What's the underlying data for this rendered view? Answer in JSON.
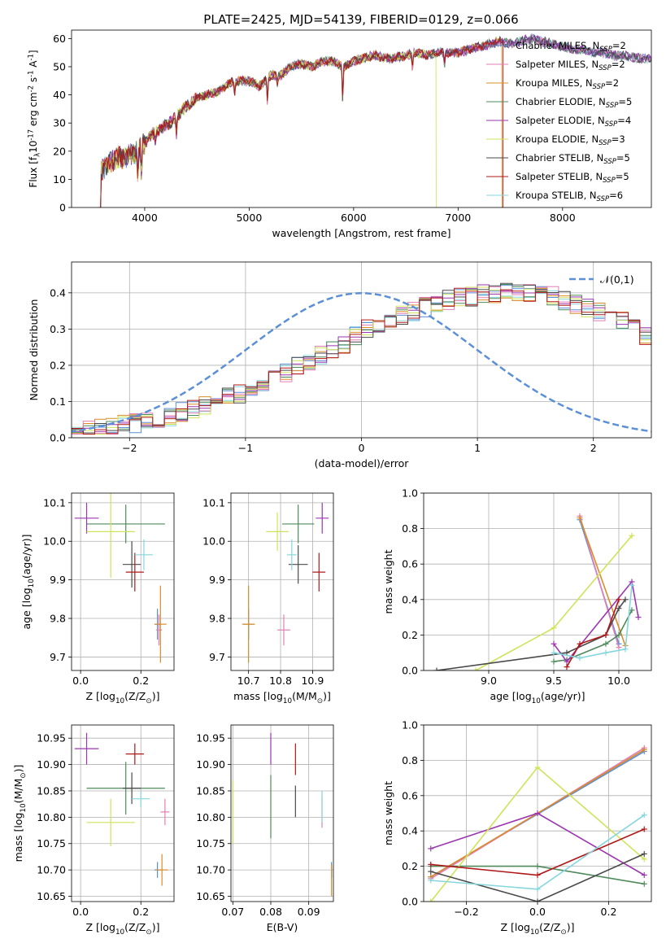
{
  "figure": {
    "title": "PLATE=2425, MJD=54139, FIBERID=0129, z=0.066"
  },
  "models": [
    {
      "name": "Chabrier MILES, N$_{SSP}$=2",
      "label_main": "Chabrier MILES, N",
      "label_sub": "SSP",
      "label_tail": "=2",
      "color": "#5a8ed6"
    },
    {
      "name": "Salpeter MILES, N$_{SSP}$=2",
      "label_main": "Salpeter MILES, N",
      "label_sub": "SSP",
      "label_tail": "=2",
      "color": "#e37fb6"
    },
    {
      "name": "Kroupa MILES, N$_{SSP}$=2",
      "label_main": "Kroupa MILES, N",
      "label_sub": "SSP",
      "label_tail": "=2",
      "color": "#d98c2a"
    },
    {
      "name": "Chabrier ELODIE, N$_{SSP}$=5",
      "label_main": "Chabrier ELODIE, N",
      "label_sub": "SSP",
      "label_tail": "=5",
      "color": "#4f8a5b"
    },
    {
      "name": "Salpeter ELODIE, N$_{SSP}$=4",
      "label_main": "Salpeter ELODIE, N",
      "label_sub": "SSP",
      "label_tail": "=4",
      "color": "#9b36b0"
    },
    {
      "name": "Kroupa ELODIE, N$_{SSP}$=3",
      "label_main": "Kroupa ELODIE, N",
      "label_sub": "SSP",
      "label_tail": "=3",
      "color": "#cfe35a"
    },
    {
      "name": "Chabrier STELIB, N$_{SSP}$=5",
      "label_main": "Chabrier STELIB, N",
      "label_sub": "SSP",
      "label_tail": "=5",
      "color": "#4a4a4a"
    },
    {
      "name": "Salpeter STELIB, N$_{SSP}$=5",
      "label_main": "Salpeter STELIB, N",
      "label_sub": "SSP",
      "label_tail": "=5",
      "color": "#b01818"
    },
    {
      "name": "Kroupa STELIB, N$_{SSP}$=6",
      "label_main": "Kroupa STELIB, N",
      "label_sub": "SSP",
      "label_tail": "=6",
      "color": "#86d6de"
    }
  ],
  "chart_data": [
    {
      "id": "spectrum",
      "type": "line",
      "title": "PLATE=2425, MJD=54139, FIBERID=0129, z=0.066",
      "xlabel": "wavelength [Angstrom, rest frame]",
      "ylabel": "Flux [f$_\\lambda$10$^{-17}$ erg cm$^{-2}$ s$^{-1}$ A$^{-1}$]",
      "xlim": [
        3300,
        8850
      ],
      "ylim": [
        0,
        63
      ],
      "xticks": [
        4000,
        5000,
        6000,
        7000,
        8000
      ],
      "yticks": [
        0,
        10,
        20,
        30,
        40,
        50,
        60
      ],
      "grid": false,
      "legend": "right",
      "envelope": {
        "x": [
          3580,
          3700,
          3800,
          3900,
          4000,
          4100,
          4200,
          4300,
          4400,
          4500,
          4600,
          4700,
          4800,
          4900,
          5000,
          5100,
          5200,
          5300,
          5400,
          5500,
          5600,
          5700,
          5800,
          5900,
          6000,
          6100,
          6200,
          6300,
          6400,
          6500,
          6600,
          6700,
          6800,
          6900,
          7000,
          7100,
          7200,
          7300,
          7400,
          7500,
          7600,
          7700,
          7800,
          7900,
          8000,
          8100,
          8200,
          8300,
          8400,
          8500,
          8600,
          8700,
          8800
        ],
        "y": [
          13,
          17,
          18,
          19,
          23,
          27,
          29,
          32,
          36,
          39,
          40,
          41,
          44,
          45,
          45,
          43,
          47,
          47,
          50,
          51,
          50,
          52,
          52,
          50,
          52,
          53,
          54,
          53,
          53,
          54,
          55,
          54,
          55,
          55,
          55,
          56,
          57,
          58,
          59,
          58,
          59,
          60,
          59,
          58,
          57,
          56,
          56,
          55,
          55,
          54,
          54,
          53,
          53
        ]
      },
      "dropouts": [
        {
          "series": "Kroupa ELODIE, N$_{SSP}$=3",
          "x": 6790
        },
        {
          "series": "Kroupa MILES, N$_{SSP}$=2",
          "x": 7420
        },
        {
          "series": "Salpeter STELIB, N$_{SSP}$=5",
          "x": 7430
        }
      ]
    },
    {
      "id": "residual_hist",
      "type": "area",
      "xlabel": "(data-model)/error",
      "ylabel": "Normed distribution",
      "xlim": [
        -2.5,
        2.5
      ],
      "ylim": [
        0,
        0.485
      ],
      "xticks": [
        -2,
        -1,
        0,
        1,
        2
      ],
      "yticks": [
        0.0,
        0.1,
        0.2,
        0.3,
        0.4
      ],
      "grid": true,
      "legend": "top-right",
      "reference": "$\\mathcal{N}(0,1)$",
      "bin_width": 0.1,
      "bins_start": -2.5,
      "shape": [
        0.02,
        0.02,
        0.025,
        0.03,
        0.035,
        0.04,
        0.045,
        0.05,
        0.06,
        0.07,
        0.08,
        0.09,
        0.1,
        0.11,
        0.12,
        0.14,
        0.15,
        0.16,
        0.18,
        0.2,
        0.21,
        0.23,
        0.24,
        0.26,
        0.28,
        0.3,
        0.31,
        0.32,
        0.34,
        0.35,
        0.36,
        0.37,
        0.38,
        0.39,
        0.39,
        0.4,
        0.4,
        0.41,
        0.4,
        0.4,
        0.39,
        0.39,
        0.38,
        0.37,
        0.36,
        0.35,
        0.33,
        0.32,
        0.3,
        0.28,
        0.27,
        0.25,
        0.23,
        0.21,
        0.19,
        0.17,
        0.15,
        0.13,
        0.12,
        0.1,
        0.09,
        0.08,
        0.07,
        0.06,
        0.05,
        0.04,
        0.035,
        0.03,
        0.025,
        0.02
      ]
    },
    {
      "id": "age_vs_Z",
      "type": "scatter",
      "xlabel": "Z [log$_{10}$(Z/Z$_\\odot$)]",
      "ylabel": "age  [log$_{10}$(age/yr)]",
      "xlim": [
        -0.03,
        0.31
      ],
      "ylim": [
        9.665,
        10.125
      ],
      "xticks": [
        0.0,
        0.2
      ],
      "yticks": [
        9.7,
        9.8,
        9.9,
        10.0,
        10.1
      ],
      "grid": true,
      "points": [
        {
          "series": "Chabrier MILES, N$_{SSP}$=2",
          "x": 0.255,
          "y": 9.785,
          "xerr": 0.01,
          "yerr": 0.04
        },
        {
          "series": "Salpeter MILES, N$_{SSP}$=2",
          "x": 0.26,
          "y": 9.77,
          "xerr": 0.01,
          "yerr": 0.04
        },
        {
          "series": "Kroupa MILES, N$_{SSP}$=2",
          "x": 0.265,
          "y": 9.785,
          "xerr": 0.02,
          "yerr": 0.1
        },
        {
          "series": "Chabrier ELODIE, N$_{SSP}$=5",
          "x": 0.15,
          "y": 10.045,
          "xerr": 0.13,
          "yerr": 0.05
        },
        {
          "series": "Salpeter ELODIE, N$_{SSP}$=4",
          "x": 0.02,
          "y": 10.06,
          "xerr": 0.04,
          "yerr": 0.04
        },
        {
          "series": "Kroupa ELODIE, N$_{SSP}$=3",
          "x": 0.1,
          "y": 10.025,
          "xerr": 0.08,
          "yerr": 0.12
        },
        {
          "series": "Chabrier STELIB, N$_{SSP}$=5",
          "x": 0.17,
          "y": 9.94,
          "xerr": 0.03,
          "yerr": 0.06
        },
        {
          "series": "Salpeter STELIB, N$_{SSP}$=5",
          "x": 0.18,
          "y": 9.92,
          "xerr": 0.03,
          "yerr": 0.05
        },
        {
          "series": "Kroupa STELIB, N$_{SSP}$=6",
          "x": 0.21,
          "y": 9.965,
          "xerr": 0.03,
          "yerr": 0.04
        }
      ]
    },
    {
      "id": "age_vs_mass",
      "type": "scatter",
      "xlabel": "mass [log$_{10}$(M/M$_\\odot$)]",
      "ylabel": "",
      "xlim": [
        10.645,
        10.965
      ],
      "ylim": [
        9.665,
        10.125
      ],
      "xticks": [
        10.7,
        10.8,
        10.9
      ],
      "yticks": [
        9.7,
        9.8,
        9.9,
        10.0,
        10.1
      ],
      "grid": true,
      "points": [
        {
          "series": "Chabrier MILES, N$_{SSP}$=2",
          "x": 10.7,
          "y": 9.785,
          "xerr": 0.015,
          "yerr": 0.04
        },
        {
          "series": "Salpeter MILES, N$_{SSP}$=2",
          "x": 10.81,
          "y": 9.77,
          "xerr": 0.02,
          "yerr": 0.04
        },
        {
          "series": "Kroupa MILES, N$_{SSP}$=2",
          "x": 10.7,
          "y": 9.785,
          "xerr": 0.02,
          "yerr": 0.1
        },
        {
          "series": "Chabrier ELODIE, N$_{SSP}$=5",
          "x": 10.855,
          "y": 10.045,
          "xerr": 0.05,
          "yerr": 0.05
        },
        {
          "series": "Salpeter ELODIE, N$_{SSP}$=4",
          "x": 10.93,
          "y": 10.06,
          "xerr": 0.02,
          "yerr": 0.04
        },
        {
          "series": "Kroupa ELODIE, N$_{SSP}$=3",
          "x": 10.79,
          "y": 10.025,
          "xerr": 0.035,
          "yerr": 0.05
        },
        {
          "series": "Chabrier STELIB, N$_{SSP}$=5",
          "x": 10.855,
          "y": 9.94,
          "xerr": 0.03,
          "yerr": 0.05
        },
        {
          "series": "Salpeter STELIB, N$_{SSP}$=5",
          "x": 10.92,
          "y": 9.92,
          "xerr": 0.02,
          "yerr": 0.05
        },
        {
          "series": "Kroupa STELIB, N$_{SSP}$=6",
          "x": 10.835,
          "y": 9.965,
          "xerr": 0.015,
          "yerr": 0.04
        }
      ]
    },
    {
      "id": "weight_vs_age",
      "type": "line",
      "xlabel": "age  [log$_{10}$(age/yr)]",
      "ylabel": "mass weight",
      "xlim": [
        8.5,
        10.25
      ],
      "ylim": [
        0,
        1
      ],
      "xticks": [
        9.0,
        9.5,
        10.0
      ],
      "yticks": [
        0.0,
        0.2,
        0.4,
        0.6,
        0.8,
        1.0
      ],
      "grid": true,
      "series": [
        {
          "name": "Chabrier MILES, N$_{SSP}$=2",
          "x": [
            9.7,
            10.0
          ],
          "y": [
            0.85,
            0.15
          ]
        },
        {
          "name": "Salpeter MILES, N$_{SSP}$=2",
          "x": [
            9.7,
            10.0
          ],
          "y": [
            0.87,
            0.13
          ]
        },
        {
          "name": "Kroupa MILES, N$_{SSP}$=2",
          "x": [
            9.7,
            10.05
          ],
          "y": [
            0.86,
            0.14
          ]
        },
        {
          "name": "Chabrier ELODIE, N$_{SSP}$=5",
          "x": [
            9.5,
            9.6,
            9.9,
            10.0,
            10.1
          ],
          "y": [
            0.05,
            0.06,
            0.15,
            0.2,
            0.34
          ]
        },
        {
          "name": "Salpeter ELODIE, N$_{SSP}$=4",
          "x": [
            9.5,
            9.6,
            10.1,
            10.15
          ],
          "y": [
            0.15,
            0.05,
            0.5,
            0.3
          ]
        },
        {
          "name": "Kroupa ELODIE, N$_{SSP}$=3",
          "x": [
            8.9,
            9.5,
            10.1
          ],
          "y": [
            0.0,
            0.24,
            0.76
          ]
        },
        {
          "name": "Chabrier STELIB, N$_{SSP}$=5",
          "x": [
            8.6,
            9.6,
            9.9,
            10.0,
            10.05
          ],
          "y": [
            0.0,
            0.1,
            0.2,
            0.35,
            0.4
          ]
        },
        {
          "name": "Salpeter STELIB, N$_{SSP}$=5",
          "x": [
            9.6,
            9.7,
            9.9,
            10.0
          ],
          "y": [
            0.02,
            0.15,
            0.2,
            0.4
          ]
        },
        {
          "name": "Kroupa STELIB, N$_{SSP}$=6",
          "x": [
            9.5,
            9.7,
            9.9,
            10.05,
            10.1
          ],
          "y": [
            0.1,
            0.07,
            0.1,
            0.12,
            0.48
          ]
        }
      ]
    },
    {
      "id": "mass_vs_Z",
      "type": "scatter",
      "xlabel": "Z [log$_{10}$(Z/Z$_\\odot$)]",
      "ylabel": "mass [log$_{10}$(M/M$_\\odot$)]",
      "xlim": [
        -0.03,
        0.31
      ],
      "ylim": [
        10.64,
        10.975
      ],
      "xticks": [
        0.0,
        0.2
      ],
      "yticks": [
        10.65,
        10.7,
        10.75,
        10.8,
        10.85,
        10.9,
        10.95
      ],
      "grid": true,
      "points": [
        {
          "series": "Chabrier MILES, N$_{SSP}$=2",
          "x": 0.255,
          "y": 10.7,
          "xerr": 0.01,
          "yerr": 0.015
        },
        {
          "series": "Salpeter MILES, N$_{SSP}$=2",
          "x": 0.28,
          "y": 10.81,
          "xerr": 0.015,
          "yerr": 0.025
        },
        {
          "series": "Kroupa MILES, N$_{SSP}$=2",
          "x": 0.27,
          "y": 10.7,
          "xerr": 0.02,
          "yerr": 0.03
        },
        {
          "series": "Chabrier ELODIE, N$_{SSP}$=5",
          "x": 0.15,
          "y": 10.855,
          "xerr": 0.13,
          "yerr": 0.05
        },
        {
          "series": "Salpeter ELODIE, N$_{SSP}$=4",
          "x": 0.02,
          "y": 10.93,
          "xerr": 0.04,
          "yerr": 0.03
        },
        {
          "series": "Kroupa ELODIE, N$_{SSP}$=3",
          "x": 0.1,
          "y": 10.79,
          "xerr": 0.08,
          "yerr": 0.045
        },
        {
          "series": "Chabrier STELIB, N$_{SSP}$=5",
          "x": 0.17,
          "y": 10.855,
          "xerr": 0.03,
          "yerr": 0.03
        },
        {
          "series": "Salpeter STELIB, N$_{SSP}$=5",
          "x": 0.18,
          "y": 10.92,
          "xerr": 0.03,
          "yerr": 0.02
        },
        {
          "series": "Kroupa STELIB, N$_{SSP}$=6",
          "x": 0.2,
          "y": 10.835,
          "xerr": 0.03,
          "yerr": 0.015
        }
      ]
    },
    {
      "id": "mass_vs_ebv",
      "type": "scatter",
      "xlabel": "E(B-V)",
      "ylabel": "",
      "xlim": [
        0.0695,
        0.0965
      ],
      "ylim": [
        10.64,
        10.975
      ],
      "xticks": [
        0.07,
        0.08,
        0.09
      ],
      "yticks": [
        10.65,
        10.7,
        10.75,
        10.8,
        10.85,
        10.9,
        10.95
      ],
      "grid": true,
      "points": [
        {
          "series": "Chabrier MILES, N$_{SSP}$=2",
          "x": 0.096,
          "y": 10.7,
          "xerr": 0,
          "yerr": 0.015
        },
        {
          "series": "Salpeter MILES, N$_{SSP}$=2",
          "x": 0.0935,
          "y": 10.81,
          "xerr": 0,
          "yerr": 0.03
        },
        {
          "series": "Kroupa MILES, N$_{SSP}$=2",
          "x": 0.096,
          "y": 10.68,
          "xerr": 0,
          "yerr": 0.03
        },
        {
          "series": "Chabrier ELODIE, N$_{SSP}$=5",
          "x": 0.08,
          "y": 10.82,
          "xerr": 0,
          "yerr": 0.06
        },
        {
          "series": "Salpeter ELODIE, N$_{SSP}$=4",
          "x": 0.08,
          "y": 10.93,
          "xerr": 0,
          "yerr": 0.03
        },
        {
          "series": "Kroupa ELODIE, N$_{SSP}$=3",
          "x": 0.07,
          "y": 10.81,
          "xerr": 0,
          "yerr": 0.06
        },
        {
          "series": "Chabrier STELIB, N$_{SSP}$=5",
          "x": 0.0865,
          "y": 10.83,
          "xerr": 0,
          "yerr": 0.03
        },
        {
          "series": "Salpeter STELIB, N$_{SSP}$=5",
          "x": 0.0865,
          "y": 10.91,
          "xerr": 0,
          "yerr": 0.03
        },
        {
          "series": "Kroupa STELIB, N$_{SSP}$=6",
          "x": 0.0935,
          "y": 10.82,
          "xerr": 0,
          "yerr": 0.03
        }
      ]
    },
    {
      "id": "weight_vs_Z",
      "type": "line",
      "xlabel": "Z [log$_{10}$(Z/Z$_\\odot$)]",
      "ylabel": "mass weight",
      "xlim": [
        -0.32,
        0.32
      ],
      "ylim": [
        0,
        1
      ],
      "xticks": [
        -0.2,
        0.0,
        0.2
      ],
      "yticks": [
        0.0,
        0.2,
        0.4,
        0.6,
        0.8,
        1.0
      ],
      "grid": true,
      "series": [
        {
          "name": "Chabrier MILES, N$_{SSP}$=2",
          "x": [
            -0.3,
            0.3
          ],
          "y": [
            0.14,
            0.85
          ]
        },
        {
          "name": "Salpeter MILES, N$_{SSP}$=2",
          "x": [
            -0.3,
            0.3
          ],
          "y": [
            0.13,
            0.87
          ]
        },
        {
          "name": "Kroupa MILES, N$_{SSP}$=2",
          "x": [
            -0.3,
            0.3
          ],
          "y": [
            0.14,
            0.86
          ]
        },
        {
          "name": "Chabrier ELODIE, N$_{SSP}$=5",
          "x": [
            -0.3,
            0.0,
            0.3
          ],
          "y": [
            0.2,
            0.2,
            0.1
          ]
        },
        {
          "name": "Salpeter ELODIE, N$_{SSP}$=4",
          "x": [
            -0.3,
            0.0,
            0.3
          ],
          "y": [
            0.3,
            0.5,
            0.15
          ]
        },
        {
          "name": "Kroupa ELODIE, N$_{SSP}$=3",
          "x": [
            -0.3,
            0.0,
            0.3
          ],
          "y": [
            0.0,
            0.76,
            0.24
          ]
        },
        {
          "name": "Chabrier STELIB, N$_{SSP}$=5",
          "x": [
            -0.3,
            0.0,
            0.3
          ],
          "y": [
            0.17,
            0.0,
            0.27
          ]
        },
        {
          "name": "Salpeter STELIB, N$_{SSP}$=5",
          "x": [
            -0.3,
            0.0,
            0.3
          ],
          "y": [
            0.21,
            0.15,
            0.41
          ]
        },
        {
          "name": "Kroupa STELIB, N$_{SSP}$=6",
          "x": [
            -0.3,
            0.0,
            0.3
          ],
          "y": [
            0.12,
            0.07,
            0.49
          ]
        }
      ]
    }
  ]
}
